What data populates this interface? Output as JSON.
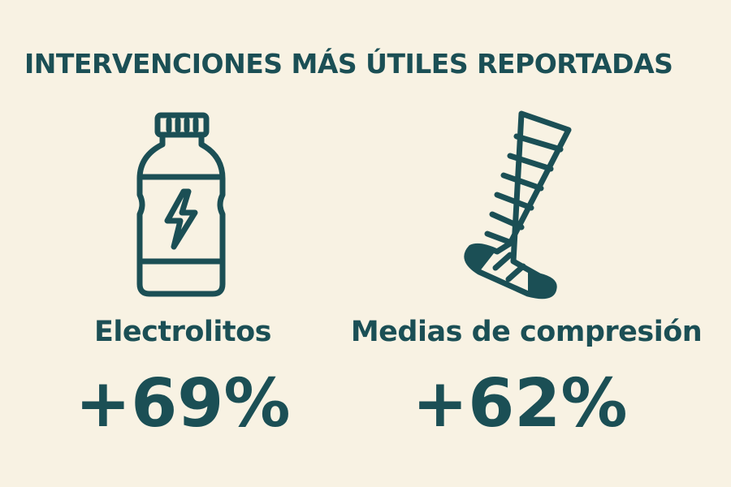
{
  "header": {
    "title": "INTERVENCIONES MÁS ÚTILES REPORTADAS"
  },
  "items": [
    {
      "label": "Electrolitos",
      "value": "+69%"
    },
    {
      "label": "Medias de compresión",
      "value": "+62%"
    }
  ]
}
